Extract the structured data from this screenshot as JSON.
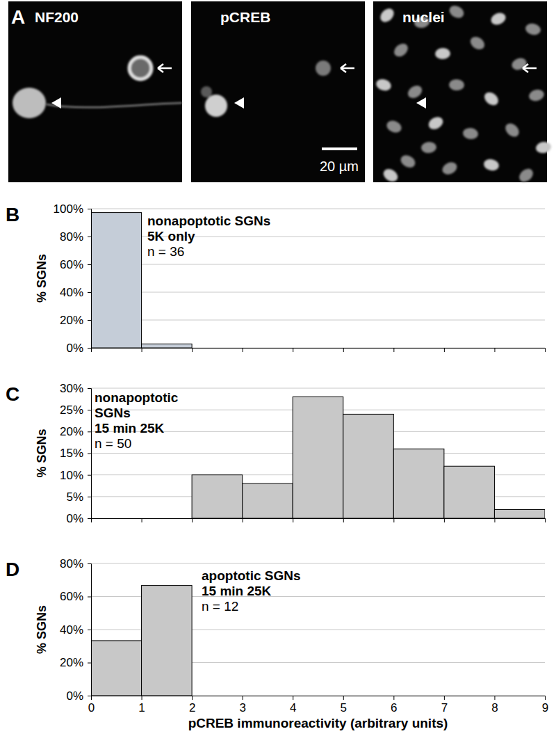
{
  "panel_a": {
    "label": "A",
    "images": [
      "NF200",
      "pCREB",
      "nuclei"
    ],
    "scale_bar": "20 µm"
  },
  "chart_data": [
    {
      "type": "histogram",
      "panel_label": "B",
      "annotations": [
        "nonapoptotic SGNs",
        "5K only",
        "n = 36"
      ],
      "ylabel": "% SGNs",
      "bins": [
        0,
        1,
        2,
        3,
        4,
        5,
        6,
        7,
        8,
        9
      ],
      "values": [
        97.2,
        2.8,
        0,
        0,
        0,
        0,
        0,
        0,
        0
      ],
      "color": "#c5cdd8",
      "xlim": [
        0,
        9
      ],
      "xticks": [
        0,
        1,
        2,
        3,
        4,
        5,
        6,
        7,
        8,
        9
      ],
      "ylim": [
        0,
        100
      ],
      "yticks": [
        {
          "value": 0,
          "label": "0%"
        },
        {
          "value": 20,
          "label": "20%"
        },
        {
          "value": 40,
          "label": "40%"
        },
        {
          "value": 60,
          "label": "60%"
        },
        {
          "value": 80,
          "label": "80%"
        },
        {
          "value": 100,
          "label": "100%"
        }
      ],
      "grid": true,
      "tick_labels": "y"
    },
    {
      "type": "histogram",
      "panel_label": "C",
      "annotations": [
        "nonapoptotic",
        "SGNs",
        "15 min 25K",
        "n = 50"
      ],
      "ylabel": "% SGNs",
      "bins": [
        0,
        1,
        2,
        3,
        4,
        5,
        6,
        7,
        8,
        9
      ],
      "values": [
        0,
        0,
        10,
        8,
        28,
        24,
        16,
        12,
        2
      ],
      "color": "#c8c8c8",
      "xlim": [
        0,
        9
      ],
      "xticks": [
        0,
        1,
        2,
        3,
        4,
        5,
        6,
        7,
        8,
        9
      ],
      "ylim": [
        0,
        30
      ],
      "yticks": [
        {
          "value": 0,
          "label": "0%"
        },
        {
          "value": 5,
          "label": "5%"
        },
        {
          "value": 10,
          "label": "10%"
        },
        {
          "value": 15,
          "label": "15%"
        },
        {
          "value": 20,
          "label": "20%"
        },
        {
          "value": 25,
          "label": "25%"
        },
        {
          "value": 30,
          "label": "30%"
        }
      ],
      "grid": true,
      "tick_labels": "y"
    },
    {
      "type": "histogram",
      "panel_label": "D",
      "annotations": [
        "apoptotic SGNs",
        "15 min 25K",
        "n = 12"
      ],
      "ylabel": "% SGNs",
      "xlabel": "pCREB immunoreactivity (arbitrary units)",
      "bins": [
        0,
        1,
        2,
        3,
        4,
        5,
        6,
        7,
        8,
        9
      ],
      "values": [
        33.3,
        66.7,
        0,
        0,
        0,
        0,
        0,
        0,
        0
      ],
      "color": "#c8c8c8",
      "xlim": [
        0,
        9
      ],
      "xticks": [
        0,
        1,
        2,
        3,
        4,
        5,
        6,
        7,
        8,
        9
      ],
      "ylim": [
        0,
        80
      ],
      "yticks": [
        {
          "value": 0,
          "label": "0%"
        },
        {
          "value": 20,
          "label": "20%"
        },
        {
          "value": 40,
          "label": "40%"
        },
        {
          "value": 60,
          "label": "60%"
        },
        {
          "value": 80,
          "label": "80%"
        }
      ],
      "grid": true
    }
  ]
}
